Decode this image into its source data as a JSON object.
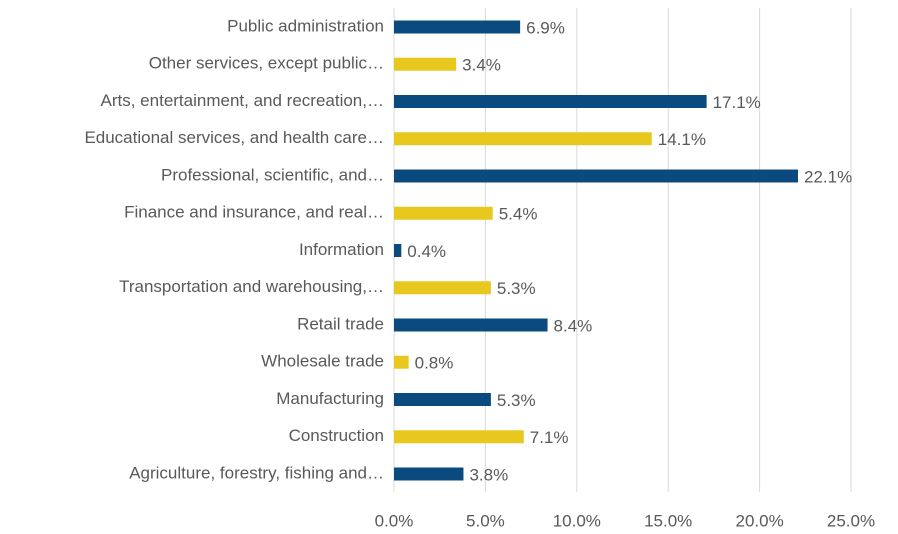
{
  "chart_data": {
    "type": "barh",
    "categories": [
      "Public administration",
      "Other services, except public…",
      "Arts, entertainment, and recreation,…",
      "Educational services, and health care…",
      "Professional, scientific, and…",
      "Finance and insurance, and real…",
      "Information",
      "Transportation and warehousing,…",
      "Retail trade",
      "Wholesale trade",
      "Manufacturing",
      "Construction",
      "Agriculture, forestry, fishing and…"
    ],
    "values": [
      6.9,
      3.4,
      17.1,
      14.1,
      22.1,
      5.4,
      0.4,
      5.3,
      8.4,
      0.8,
      5.3,
      7.1,
      3.8
    ],
    "value_labels": [
      "6.9%",
      "3.4%",
      "17.1%",
      "14.1%",
      "22.1%",
      "5.4%",
      "0.4%",
      "5.3%",
      "8.4%",
      "0.8%",
      "5.3%",
      "7.1%",
      "3.8%"
    ],
    "colors": [
      "#0b4a7e",
      "#e8c81e",
      "#0b4a7e",
      "#e8c81e",
      "#0b4a7e",
      "#e8c81e",
      "#0b4a7e",
      "#e8c81e",
      "#0b4a7e",
      "#e8c81e",
      "#0b4a7e",
      "#e8c81e",
      "#0b4a7e"
    ],
    "xlim": [
      0,
      25
    ],
    "xticks": [
      {
        "value": 0,
        "label": "0.0%"
      },
      {
        "value": 5,
        "label": "5.0%"
      },
      {
        "value": 10,
        "label": "10.0%"
      },
      {
        "value": 15,
        "label": "15.0%"
      },
      {
        "value": 20,
        "label": "20.0%"
      },
      {
        "value": 25,
        "label": "25.0%"
      }
    ],
    "grid": true
  }
}
